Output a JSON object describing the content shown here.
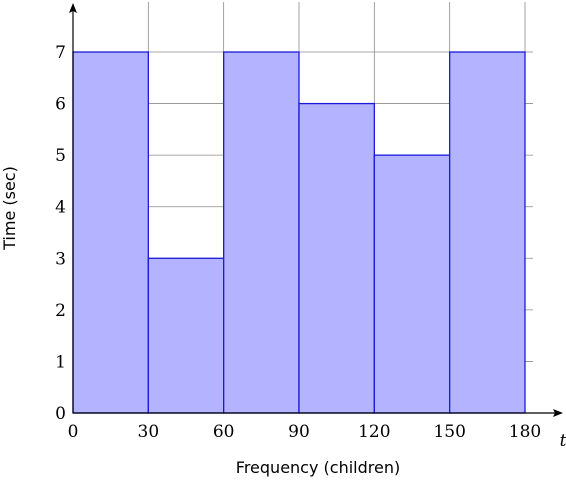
{
  "chart_data": {
    "type": "bar",
    "bins": [
      {
        "x0": 0,
        "x1": 30,
        "value": 7
      },
      {
        "x0": 30,
        "x1": 60,
        "value": 3
      },
      {
        "x0": 60,
        "x1": 90,
        "value": 7
      },
      {
        "x0": 90,
        "x1": 120,
        "value": 6
      },
      {
        "x0": 120,
        "x1": 150,
        "value": 5
      },
      {
        "x0": 150,
        "x1": 180,
        "value": 7
      }
    ],
    "xticks": [
      0,
      30,
      60,
      90,
      120,
      150,
      180
    ],
    "yticks": [
      0,
      1,
      2,
      3,
      4,
      5,
      6,
      7
    ],
    "xlabel": "Frequency (children)",
    "ylabel": "Time (sec)",
    "x_axis_variable": "t",
    "xlim": [
      0,
      180
    ],
    "ylim": [
      0,
      7
    ],
    "grid": true,
    "colors": {
      "bar_fill": "#b3b3ff",
      "bar_edge": "#1a1ad9",
      "grid": "#8c8c8c"
    }
  }
}
